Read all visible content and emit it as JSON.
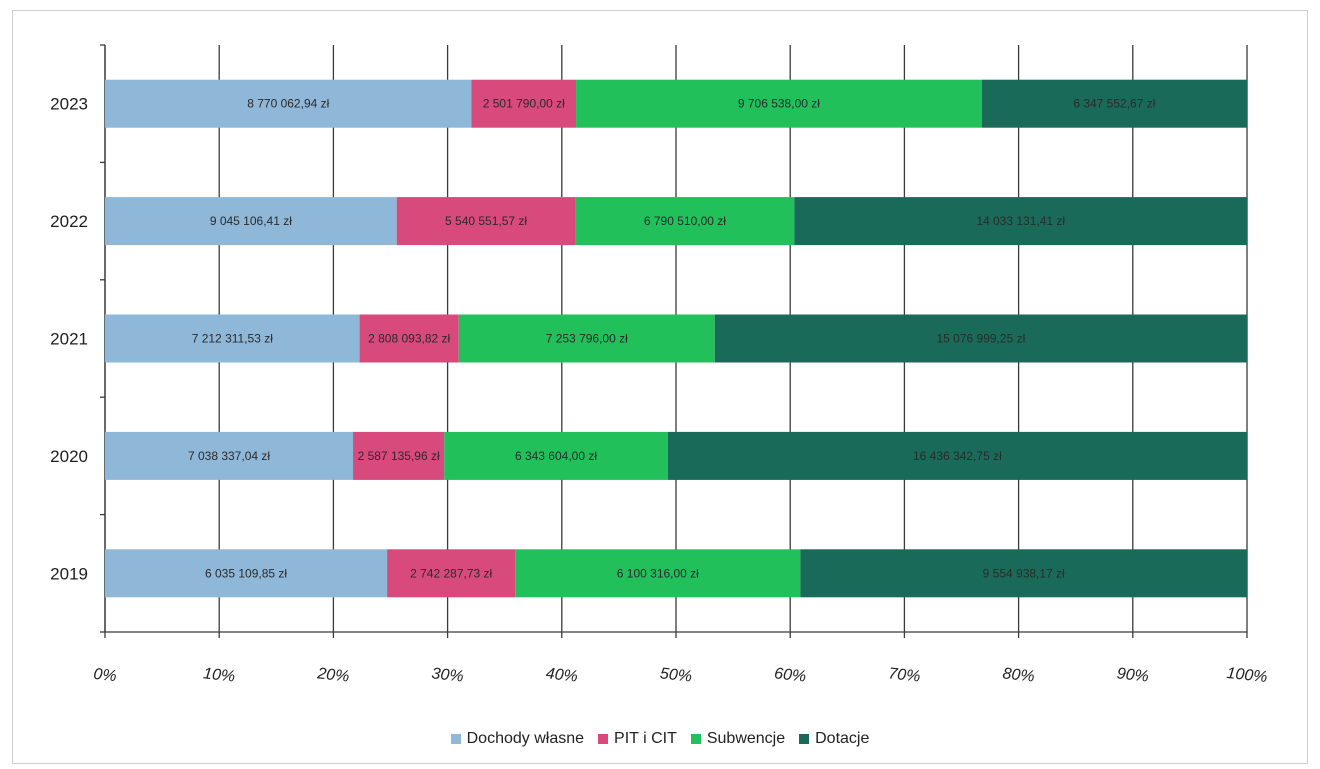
{
  "chart_data": {
    "type": "bar",
    "orientation": "horizontal",
    "stacked": "percent",
    "categories": [
      "2019",
      "2020",
      "2021",
      "2022",
      "2023"
    ],
    "series": [
      {
        "name": "Dochody własne",
        "color": "#8fb7d7",
        "values": [
          6035109.85,
          7038337.04,
          7212311.53,
          9045106.41,
          8770062.94
        ],
        "labels": [
          "6 035 109,85 zł",
          "7 038 337,04 zł",
          "7 212 311,53 zł",
          "9 045 106,41 zł",
          "8 770 062,94 zł"
        ]
      },
      {
        "name": "PIT i CIT",
        "color": "#d8497c",
        "values": [
          2742287.73,
          2587135.96,
          2808093.82,
          5540551.57,
          2501790.0
        ],
        "labels": [
          "2 742 287,73 zł",
          "2 587 135,96 zł",
          "2 808 093,82 zł",
          "5 540 551,57 zł",
          "2 501 790,00 zł"
        ]
      },
      {
        "name": "Subwencje",
        "color": "#21c05a",
        "values": [
          6100316.0,
          6343604.0,
          7253796.0,
          6790510.0,
          9706538.0
        ],
        "labels": [
          "6 100 316,00 zł",
          "6 343 604,00 zł",
          "7 253 796,00 zł",
          "6 790 510,00 zł",
          "9 706 538,00 zł"
        ]
      },
      {
        "name": "Dotacje",
        "color": "#1a6a5a",
        "values": [
          9554938.17,
          16436342.75,
          15076999.25,
          14033131.41,
          6347552.67
        ],
        "labels": [
          "9 554 938,17 zł",
          "16 436 342,75 zł",
          "15 076 999,25 zł",
          "14 033 131,41 zł",
          "6 347 552,67 zł"
        ]
      }
    ],
    "xticks": [
      "0%",
      "10%",
      "20%",
      "30%",
      "40%",
      "50%",
      "60%",
      "70%",
      "80%",
      "90%",
      "100%"
    ],
    "xlim": [
      0,
      100
    ],
    "grid": true,
    "legend": "bottom"
  }
}
